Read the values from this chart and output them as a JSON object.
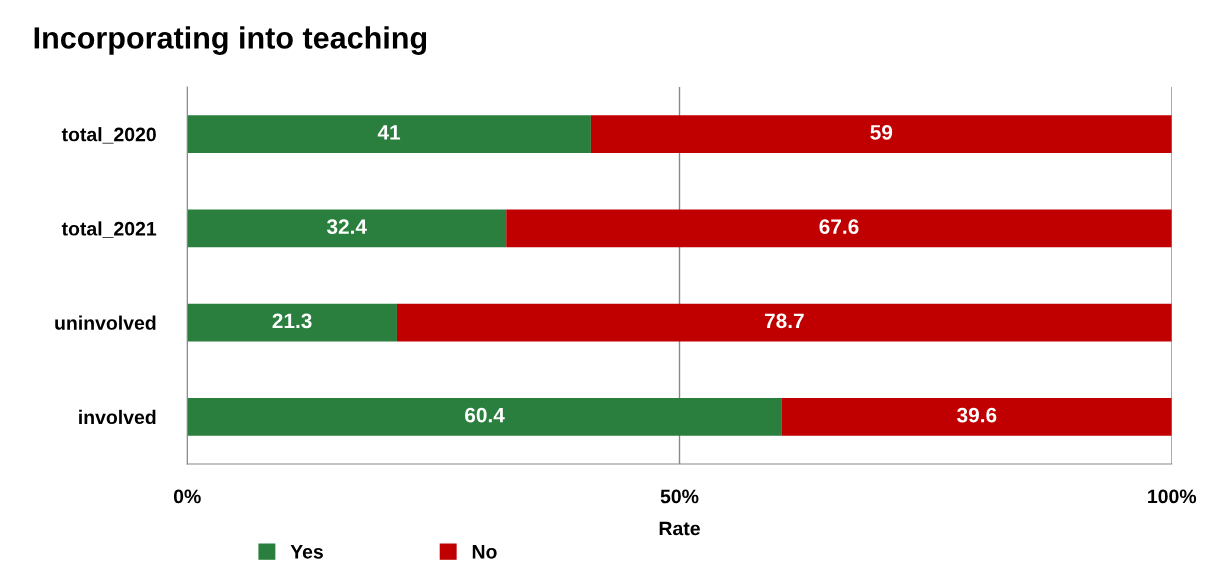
{
  "chart_data": {
    "type": "bar",
    "orientation": "horizontal",
    "stacked": true,
    "title": "Incorporating into teaching",
    "xlabel": "Rate",
    "categories": [
      "total_2020",
      "total_2021",
      "uninvolved",
      "involved"
    ],
    "series": [
      {
        "name": "Yes",
        "color": "#2a7f3e",
        "values": [
          41,
          32.4,
          21.3,
          60.4
        ]
      },
      {
        "name": "No",
        "color": "#c00000",
        "values": [
          59,
          67.6,
          78.7,
          39.6
        ]
      }
    ],
    "xlim": [
      0,
      100
    ],
    "xticks": [
      {
        "value": 0,
        "label": "0%"
      },
      {
        "value": 50,
        "label": "50%"
      },
      {
        "value": 100,
        "label": "100%"
      }
    ],
    "grid": "x",
    "legend": "bottom",
    "data_labels": true
  }
}
